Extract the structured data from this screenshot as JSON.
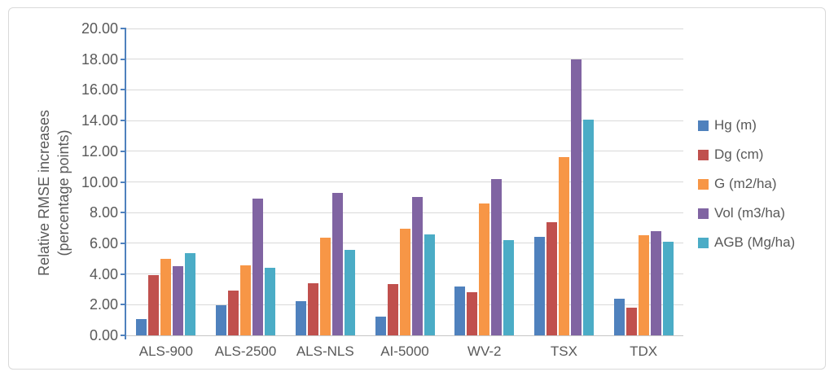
{
  "figure": {
    "frame_border_color": "#d9d9d9",
    "background_color": "#ffffff"
  },
  "chart_data": {
    "type": "bar",
    "title": "",
    "xlabel": "",
    "ylabel": "Relative RMSE increases (percentage points)",
    "ylabel_lines": [
      "Relative RMSE increases",
      "(percentage points)"
    ],
    "categories": [
      "ALS-900",
      "ALS-2500",
      "ALS-NLS",
      "AI-5000",
      "WV-2",
      "TSX",
      "TDX"
    ],
    "series": [
      {
        "name": "Hg (m)",
        "color": "#4F81BD",
        "values": [
          1.05,
          1.95,
          2.25,
          1.2,
          3.2,
          6.4,
          2.4
        ]
      },
      {
        "name": "Dg (cm)",
        "color": "#C0504D",
        "values": [
          3.9,
          2.9,
          3.4,
          3.35,
          2.8,
          7.35,
          1.8
        ]
      },
      {
        "name": "G (m2/ha)",
        "color": "#F79646",
        "values": [
          5.0,
          4.55,
          6.35,
          6.95,
          8.6,
          11.6,
          6.5
        ]
      },
      {
        "name": "Vol (m3/ha)",
        "color": "#8064A2",
        "values": [
          4.5,
          8.9,
          9.3,
          9.0,
          10.2,
          18.0,
          6.8
        ]
      },
      {
        "name": "AGB (Mg/ha)",
        "color": "#4BACC6",
        "values": [
          5.35,
          4.4,
          5.55,
          6.6,
          6.2,
          14.05,
          6.1
        ]
      }
    ],
    "ylim": [
      0,
      20
    ],
    "ytick_step": 2,
    "ytick_labels": [
      "0.00",
      "2.00",
      "4.00",
      "6.00",
      "8.00",
      "10.00",
      "12.00",
      "14.00",
      "16.00",
      "18.00",
      "20.00"
    ],
    "grid": true,
    "legend_position": "right",
    "axis_line_color": "#4F81BD",
    "gridline_color": "#D9D9D9",
    "baseline_color": "#C6C6C6",
    "text_color": "#595959"
  }
}
